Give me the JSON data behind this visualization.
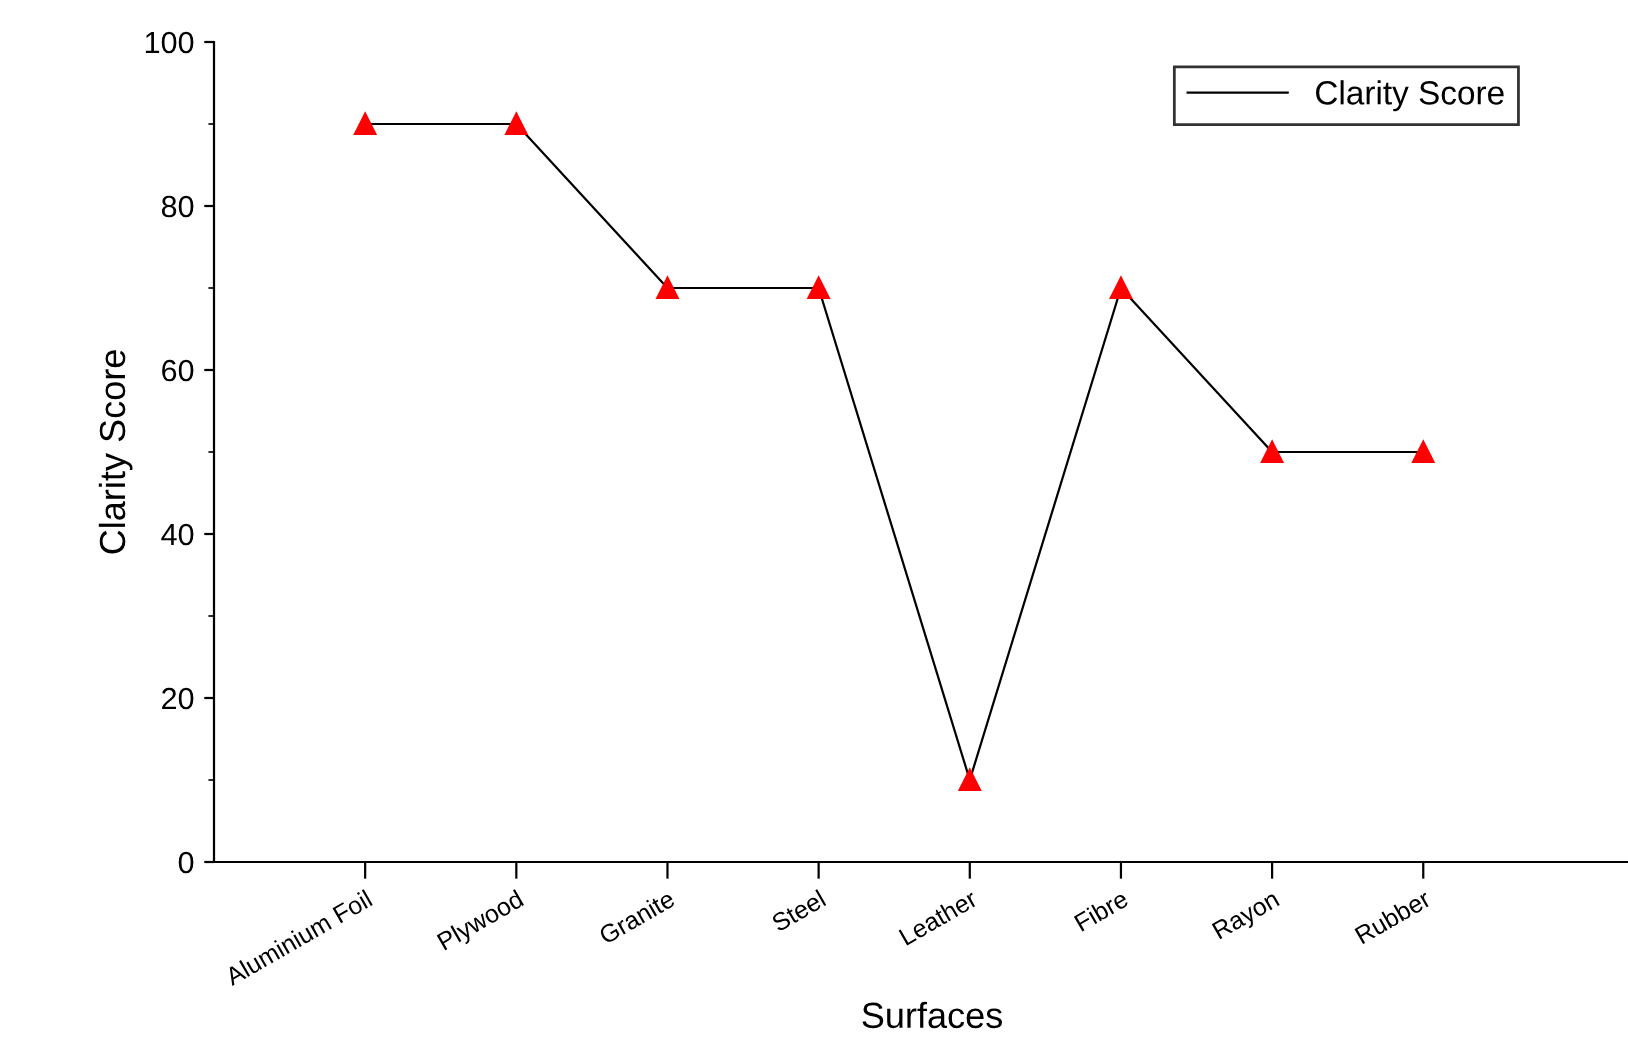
{
  "chart_data": {
    "type": "line",
    "xlabel": "Surfaces",
    "ylabel": "Clarity Score",
    "categories": [
      "Aluminium Foil",
      "Plywood",
      "Granite",
      "Steel",
      "Leather",
      "Fibre",
      "Rayon",
      "Rubber"
    ],
    "series": [
      {
        "name": "Clarity Score",
        "color": "#000000",
        "colors": [
          "#ff0000",
          "#ff0000",
          "#ff0000",
          "#ff0000",
          "#ff0000",
          "#ff0000",
          "#ff0000",
          "#ff0000"
        ],
        "values": [
          90,
          90,
          70,
          70,
          10,
          70,
          50,
          50
        ]
      }
    ],
    "ylim": [
      0,
      100
    ],
    "yticks": [
      0,
      20,
      40,
      60,
      80,
      100
    ],
    "marker": "triangle",
    "line_style": "solid",
    "legend": "top right",
    "grid": false
  }
}
